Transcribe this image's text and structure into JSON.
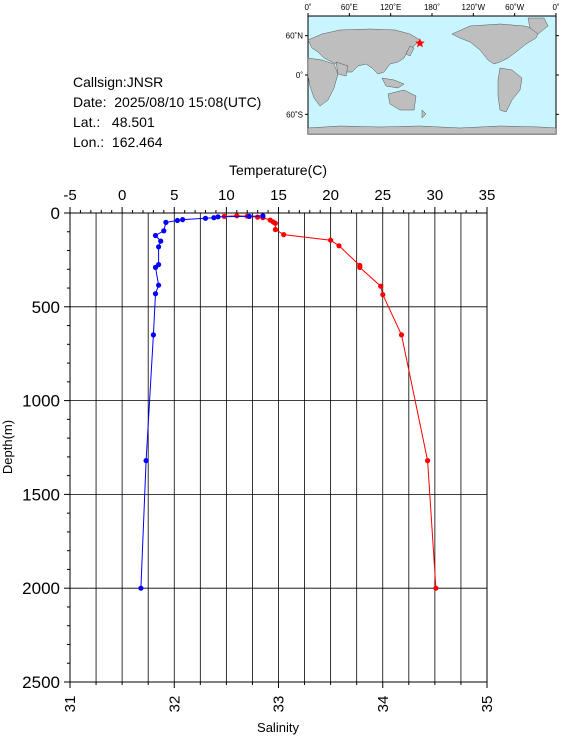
{
  "header": {
    "callsign_label": "Callsign:",
    "callsign": "JNSR",
    "date_label": "Date:",
    "date": "2025/08/10 15:08(UTC)",
    "lat_label": "Lat.:",
    "lat": "48.501",
    "lon_label": "Lon.:",
    "lon": "162.464"
  },
  "map": {
    "top_ticks": [
      "0˚",
      "60˚E",
      "120˚E",
      "180˚",
      "120˚W",
      "60˚W",
      "0˚"
    ],
    "lat_ticks": [
      "60˚N",
      "0˚",
      "60˚S"
    ],
    "ocean_color": "#c8f5ff",
    "land_color": "#bebebe",
    "marker_color": "#ff0000",
    "marker": {
      "lon": 162.464,
      "lat": 48.501
    }
  },
  "chart_data": {
    "type": "line",
    "title": "",
    "ylabel": "Depth(m)",
    "ylim": [
      2500,
      0
    ],
    "yticks": [
      "0",
      "500",
      "1000",
      "1500",
      "2000",
      "2500"
    ],
    "top_axis": {
      "label": "Temperature(C)",
      "range": [
        -5,
        35
      ],
      "ticks": [
        "-5",
        "0",
        "5",
        "10",
        "15",
        "20",
        "25",
        "30",
        "35"
      ]
    },
    "bottom_axis": {
      "label": "Salinity",
      "range": [
        31,
        35
      ],
      "ticks": [
        "31",
        "32",
        "33",
        "34",
        "35"
      ]
    },
    "grid": true,
    "series": [
      {
        "name": "",
        "axis": "top",
        "color": "#ff0000",
        "marker": "circle",
        "points": [
          {
            "x": 9.8,
            "y": 18
          },
          {
            "x": 11.0,
            "y": 15
          },
          {
            "x": 12.0,
            "y": 17
          },
          {
            "x": 13.0,
            "y": 22
          },
          {
            "x": 13.5,
            "y": 25
          },
          {
            "x": 14.2,
            "y": 38
          },
          {
            "x": 14.5,
            "y": 48
          },
          {
            "x": 14.7,
            "y": 55
          },
          {
            "x": 14.7,
            "y": 88
          },
          {
            "x": 15.5,
            "y": 115
          },
          {
            "x": 20.0,
            "y": 145
          },
          {
            "x": 20.8,
            "y": 175
          },
          {
            "x": 22.8,
            "y": 280
          },
          {
            "x": 22.8,
            "y": 290
          },
          {
            "x": 24.8,
            "y": 390
          },
          {
            "x": 25.0,
            "y": 435
          },
          {
            "x": 26.8,
            "y": 650
          },
          {
            "x": 29.3,
            "y": 1320
          },
          {
            "x": 30.1,
            "y": 2000
          }
        ]
      },
      {
        "name": "",
        "axis": "bottom",
        "color": "#0000ff",
        "marker": "circle",
        "points": [
          {
            "x": 32.85,
            "y": 15
          },
          {
            "x": 32.72,
            "y": 18
          },
          {
            "x": 32.42,
            "y": 20
          },
          {
            "x": 32.38,
            "y": 25
          },
          {
            "x": 32.3,
            "y": 28
          },
          {
            "x": 32.08,
            "y": 35
          },
          {
            "x": 32.03,
            "y": 40
          },
          {
            "x": 31.92,
            "y": 50
          },
          {
            "x": 31.9,
            "y": 95
          },
          {
            "x": 31.82,
            "y": 120
          },
          {
            "x": 31.87,
            "y": 150
          },
          {
            "x": 31.85,
            "y": 180
          },
          {
            "x": 31.85,
            "y": 275
          },
          {
            "x": 31.82,
            "y": 290
          },
          {
            "x": 31.85,
            "y": 385
          },
          {
            "x": 31.82,
            "y": 430
          },
          {
            "x": 31.8,
            "y": 650
          },
          {
            "x": 31.73,
            "y": 1320
          },
          {
            "x": 31.68,
            "y": 2000
          }
        ]
      }
    ]
  }
}
